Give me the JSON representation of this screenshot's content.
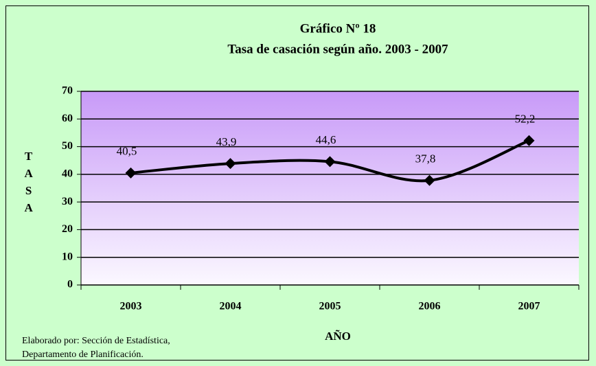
{
  "chart_data": {
    "type": "line",
    "title": [
      "Gráfico Nº 18",
      "Tasa de casación según año. 2003 - 2007"
    ],
    "x_label": "AÑO",
    "y_label": "TASA",
    "categories": [
      "2003",
      "2004",
      "2005",
      "2006",
      "2007"
    ],
    "values": [
      40.5,
      43.9,
      44.6,
      37.8,
      52.2
    ],
    "value_labels": [
      "40,5",
      "43,9",
      "44,6",
      "37,8",
      "52,2"
    ],
    "color": "#000000",
    "smooth": true,
    "ylim": [
      0,
      70
    ],
    "yticks": [
      0,
      10,
      20,
      30,
      40,
      50,
      60,
      70
    ],
    "grid": true,
    "source": [
      "Elaborado por: Sección de Estadística,",
      "Departamento de Planificación."
    ]
  }
}
